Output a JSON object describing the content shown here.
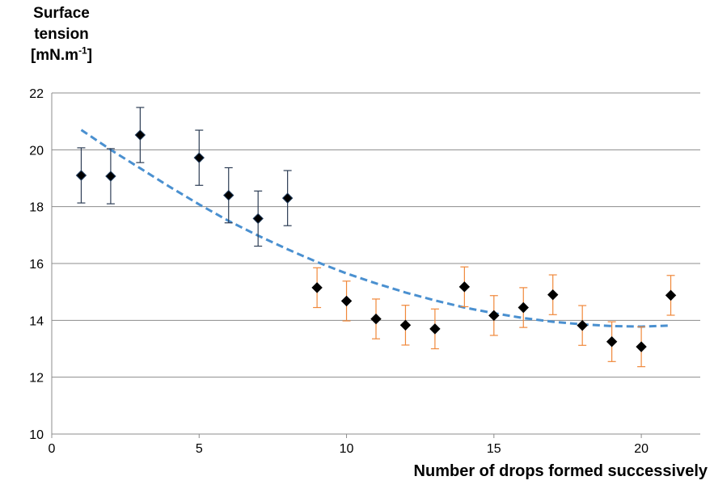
{
  "chart_data": {
    "type": "scatter",
    "title": "",
    "ylabel_lines": [
      "Surface",
      "tension"
    ],
    "ylabel_unit_prefix": "[mN.m",
    "ylabel_unit_sup": "-1",
    "ylabel_unit_suffix": "]",
    "xlabel": "Number of drops formed successively",
    "xlim": [
      0,
      22
    ],
    "ylim": [
      10,
      22
    ],
    "x_ticks": [
      0,
      5,
      10,
      15,
      20
    ],
    "y_ticks": [
      10,
      12,
      14,
      16,
      18,
      20,
      22
    ],
    "grid": "horizontal",
    "series": [
      {
        "marker": "diamond",
        "marker_color": "#000000",
        "marker_edge": "#1f3b5c",
        "error_color": "#2d3d55",
        "x": [
          1,
          2,
          3,
          5,
          6,
          7,
          8
        ],
        "y": [
          19.1,
          19.07,
          20.52,
          19.72,
          18.4,
          17.58,
          18.3
        ],
        "error": [
          0.97,
          0.97,
          0.97,
          0.97,
          0.97,
          0.97,
          0.97
        ]
      },
      {
        "marker": "diamond",
        "marker_color": "#000000",
        "marker_edge": "#000000",
        "error_color": "#f0883a",
        "x": [
          9,
          10,
          11,
          12,
          13,
          14,
          15,
          16,
          17,
          18,
          19,
          20,
          21
        ],
        "y": [
          15.15,
          14.68,
          14.05,
          13.83,
          13.7,
          15.18,
          14.17,
          14.45,
          14.9,
          13.82,
          13.25,
          13.07,
          14.88
        ],
        "error": [
          0.7,
          0.7,
          0.7,
          0.7,
          0.7,
          0.7,
          0.7,
          0.7,
          0.7,
          0.7,
          0.7,
          0.7,
          0.7
        ]
      }
    ],
    "trendline": {
      "style": "dashed",
      "color": "#4a90d0",
      "x": [
        1,
        2,
        3,
        4,
        5,
        6,
        7,
        8,
        9,
        10,
        11,
        12,
        13,
        14,
        15,
        16,
        17,
        18,
        19,
        20,
        21
      ],
      "y": [
        20.7,
        20.0,
        19.35,
        18.7,
        18.08,
        17.5,
        16.98,
        16.5,
        16.05,
        15.65,
        15.3,
        14.98,
        14.7,
        14.45,
        14.25,
        14.08,
        13.95,
        13.86,
        13.8,
        13.78,
        13.82
      ]
    }
  }
}
